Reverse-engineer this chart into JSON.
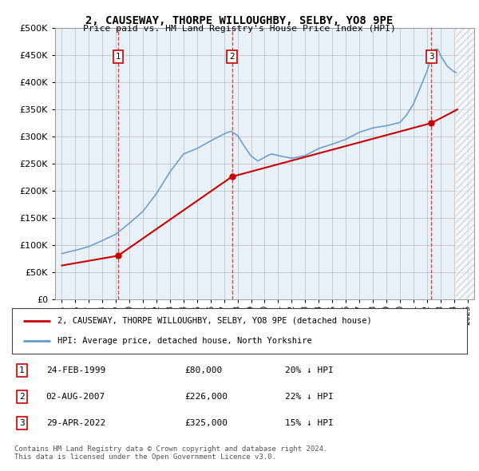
{
  "title": "2, CAUSEWAY, THORPE WILLOUGHBY, SELBY, YO8 9PE",
  "subtitle": "Price paid vs. HM Land Registry's House Price Index (HPI)",
  "hpi_color": "#6699cc",
  "price_color": "#cc0000",
  "marker_color": "#cc0000",
  "vline_color": "#ee3333",
  "plot_bg": "#e8f0f8",
  "grid_color": "#bbbbbb",
  "transactions": [
    {
      "num": 1,
      "date": "24-FEB-1999",
      "price": 80000,
      "x": 1999.15,
      "hpi_pct": 20
    },
    {
      "num": 2,
      "date": "02-AUG-2007",
      "price": 226000,
      "x": 2007.58,
      "hpi_pct": 22
    },
    {
      "num": 3,
      "date": "29-APR-2022",
      "price": 325000,
      "x": 2022.33,
      "hpi_pct": 15
    }
  ],
  "legend_line1": "2, CAUSEWAY, THORPE WILLOUGHBY, SELBY, YO8 9PE (detached house)",
  "legend_line2": "HPI: Average price, detached house, North Yorkshire",
  "copyright": "Contains HM Land Registry data © Crown copyright and database right 2024.\nThis data is licensed under the Open Government Licence v3.0.",
  "ylim": [
    0,
    500000
  ],
  "xlim": [
    1994.5,
    2025.5
  ],
  "yticks": [
    0,
    50000,
    100000,
    150000,
    200000,
    250000,
    300000,
    350000,
    400000,
    450000,
    500000
  ],
  "hatch_start": 2024.17,
  "seg_x": [
    1995.0,
    1999.15,
    2007.58,
    2022.33,
    2024.25
  ],
  "seg_y": [
    62000,
    80000,
    226000,
    325000,
    350000
  ],
  "xtick_years": [
    1995,
    1996,
    1997,
    1998,
    1999,
    2000,
    2001,
    2002,
    2003,
    2004,
    2005,
    2006,
    2007,
    2008,
    2009,
    2010,
    2011,
    2012,
    2013,
    2014,
    2015,
    2016,
    2017,
    2018,
    2019,
    2020,
    2021,
    2022,
    2023,
    2024,
    2025
  ]
}
